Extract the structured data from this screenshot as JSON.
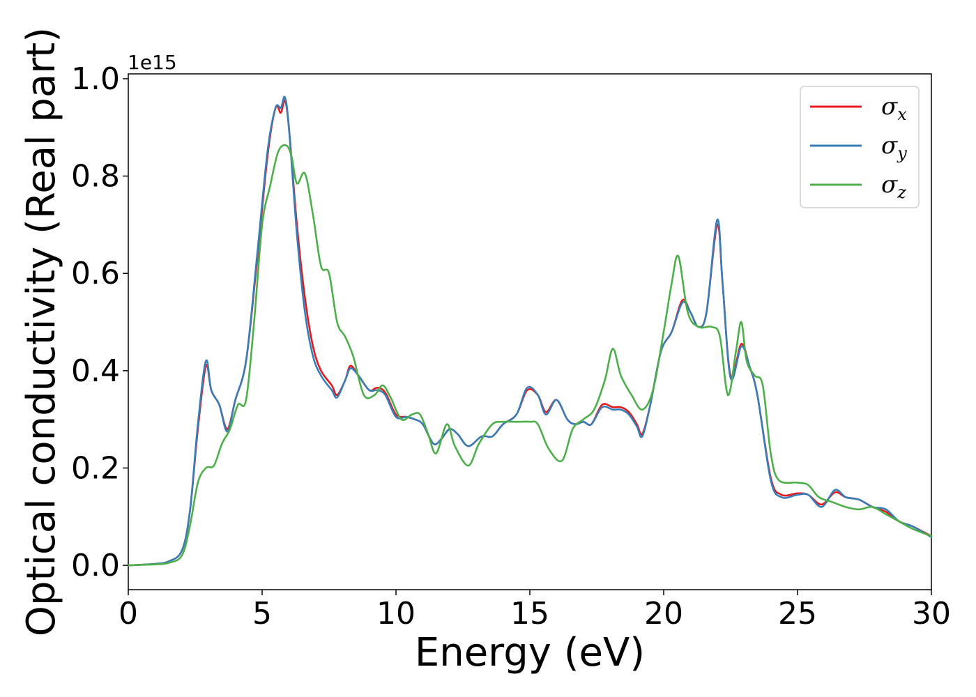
{
  "chart_data": {
    "type": "line",
    "title": "",
    "xlabel": "Energy (eV)",
    "ylabel": "Optical conductivity (Real part)",
    "y_offset_text": "1e15",
    "xlim": [
      0,
      30
    ],
    "ylim": [
      -0.05,
      1.01
    ],
    "xticks": [
      0,
      5,
      10,
      15,
      20,
      25,
      30
    ],
    "xtick_labels": [
      "0",
      "5",
      "10",
      "15",
      "20",
      "25",
      "30"
    ],
    "yticks": [
      0.0,
      0.2,
      0.4,
      0.6,
      0.8,
      1.0
    ],
    "ytick_labels": [
      "0.0",
      "0.2",
      "0.4",
      "0.6",
      "0.8",
      "1.0"
    ],
    "grid": false,
    "legend_position": "top-right",
    "series": [
      {
        "name": "σx",
        "legend_symbol": "σ",
        "legend_subscript": "x",
        "color": "#e41a1c",
        "points": [
          [
            0,
            0
          ],
          [
            1,
            0.003
          ],
          [
            1.5,
            0.008
          ],
          [
            2,
            0.03
          ],
          [
            2.3,
            0.11
          ],
          [
            2.6,
            0.28
          ],
          [
            2.9,
            0.41
          ],
          [
            3.1,
            0.36
          ],
          [
            3.4,
            0.33
          ],
          [
            3.7,
            0.28
          ],
          [
            4,
            0.34
          ],
          [
            4.4,
            0.42
          ],
          [
            4.8,
            0.62
          ],
          [
            5.2,
            0.84
          ],
          [
            5.5,
            0.94
          ],
          [
            5.7,
            0.93
          ],
          [
            5.85,
            0.955
          ],
          [
            6,
            0.9
          ],
          [
            6.3,
            0.7
          ],
          [
            6.6,
            0.55
          ],
          [
            6.9,
            0.45
          ],
          [
            7.2,
            0.4
          ],
          [
            7.6,
            0.37
          ],
          [
            7.8,
            0.35
          ],
          [
            8.1,
            0.38
          ],
          [
            8.3,
            0.41
          ],
          [
            8.6,
            0.39
          ],
          [
            9,
            0.36
          ],
          [
            9.3,
            0.365
          ],
          [
            9.6,
            0.355
          ],
          [
            10,
            0.31
          ],
          [
            10.4,
            0.305
          ],
          [
            10.7,
            0.3
          ],
          [
            11,
            0.29
          ],
          [
            11.4,
            0.25
          ],
          [
            11.7,
            0.26
          ],
          [
            12,
            0.28
          ],
          [
            12.3,
            0.27
          ],
          [
            12.7,
            0.245
          ],
          [
            13.2,
            0.265
          ],
          [
            13.6,
            0.265
          ],
          [
            14,
            0.29
          ],
          [
            14.5,
            0.31
          ],
          [
            14.9,
            0.36
          ],
          [
            15.3,
            0.35
          ],
          [
            15.6,
            0.315
          ],
          [
            16,
            0.34
          ],
          [
            16.4,
            0.3
          ],
          [
            16.7,
            0.29
          ],
          [
            17,
            0.295
          ],
          [
            17.3,
            0.29
          ],
          [
            17.7,
            0.33
          ],
          [
            18.1,
            0.325
          ],
          [
            18.4,
            0.325
          ],
          [
            18.7,
            0.315
          ],
          [
            19,
            0.29
          ],
          [
            19.2,
            0.27
          ],
          [
            19.5,
            0.33
          ],
          [
            19.9,
            0.44
          ],
          [
            20.3,
            0.48
          ],
          [
            20.7,
            0.545
          ],
          [
            21,
            0.52
          ],
          [
            21.3,
            0.49
          ],
          [
            21.6,
            0.52
          ],
          [
            22,
            0.7
          ],
          [
            22.2,
            0.58
          ],
          [
            22.5,
            0.39
          ],
          [
            22.9,
            0.455
          ],
          [
            23.2,
            0.41
          ],
          [
            23.5,
            0.35
          ],
          [
            24,
            0.18
          ],
          [
            24.4,
            0.145
          ],
          [
            25,
            0.148
          ],
          [
            25.4,
            0.145
          ],
          [
            25.9,
            0.125
          ],
          [
            26.4,
            0.15
          ],
          [
            26.8,
            0.14
          ],
          [
            27.3,
            0.135
          ],
          [
            27.8,
            0.12
          ],
          [
            28.3,
            0.11
          ],
          [
            28.8,
            0.09
          ],
          [
            29.3,
            0.08
          ],
          [
            30,
            0.06
          ]
        ]
      },
      {
        "name": "σy",
        "legend_symbol": "σ",
        "legend_subscript": "y",
        "color": "#377eb8",
        "points": [
          [
            0,
            0
          ],
          [
            1,
            0.003
          ],
          [
            1.5,
            0.008
          ],
          [
            2,
            0.03
          ],
          [
            2.3,
            0.11
          ],
          [
            2.6,
            0.29
          ],
          [
            2.9,
            0.42
          ],
          [
            3.1,
            0.36
          ],
          [
            3.4,
            0.33
          ],
          [
            3.7,
            0.275
          ],
          [
            4,
            0.34
          ],
          [
            4.4,
            0.42
          ],
          [
            4.8,
            0.63
          ],
          [
            5.2,
            0.85
          ],
          [
            5.5,
            0.94
          ],
          [
            5.7,
            0.94
          ],
          [
            5.85,
            0.962
          ],
          [
            6,
            0.9
          ],
          [
            6.3,
            0.68
          ],
          [
            6.6,
            0.52
          ],
          [
            6.9,
            0.43
          ],
          [
            7.2,
            0.39
          ],
          [
            7.6,
            0.36
          ],
          [
            7.8,
            0.345
          ],
          [
            8.1,
            0.38
          ],
          [
            8.3,
            0.405
          ],
          [
            8.6,
            0.39
          ],
          [
            9,
            0.36
          ],
          [
            9.3,
            0.36
          ],
          [
            9.6,
            0.35
          ],
          [
            10,
            0.305
          ],
          [
            10.4,
            0.305
          ],
          [
            10.7,
            0.3
          ],
          [
            11,
            0.29
          ],
          [
            11.4,
            0.25
          ],
          [
            11.7,
            0.26
          ],
          [
            12,
            0.28
          ],
          [
            12.3,
            0.27
          ],
          [
            12.7,
            0.245
          ],
          [
            13.2,
            0.265
          ],
          [
            13.6,
            0.265
          ],
          [
            14,
            0.29
          ],
          [
            14.5,
            0.31
          ],
          [
            14.9,
            0.365
          ],
          [
            15.3,
            0.35
          ],
          [
            15.6,
            0.31
          ],
          [
            16,
            0.34
          ],
          [
            16.4,
            0.3
          ],
          [
            16.7,
            0.29
          ],
          [
            17,
            0.295
          ],
          [
            17.3,
            0.29
          ],
          [
            17.7,
            0.325
          ],
          [
            18.1,
            0.32
          ],
          [
            18.4,
            0.32
          ],
          [
            18.7,
            0.31
          ],
          [
            19,
            0.285
          ],
          [
            19.2,
            0.265
          ],
          [
            19.5,
            0.33
          ],
          [
            19.9,
            0.44
          ],
          [
            20.3,
            0.48
          ],
          [
            20.7,
            0.54
          ],
          [
            21,
            0.52
          ],
          [
            21.3,
            0.49
          ],
          [
            21.6,
            0.52
          ],
          [
            22,
            0.71
          ],
          [
            22.2,
            0.58
          ],
          [
            22.5,
            0.385
          ],
          [
            22.9,
            0.45
          ],
          [
            23.2,
            0.41
          ],
          [
            23.5,
            0.35
          ],
          [
            24,
            0.175
          ],
          [
            24.4,
            0.14
          ],
          [
            25,
            0.145
          ],
          [
            25.4,
            0.145
          ],
          [
            25.9,
            0.12
          ],
          [
            26.4,
            0.155
          ],
          [
            26.8,
            0.14
          ],
          [
            27.3,
            0.135
          ],
          [
            27.8,
            0.12
          ],
          [
            28.3,
            0.115
          ],
          [
            28.8,
            0.09
          ],
          [
            29.3,
            0.08
          ],
          [
            30,
            0.058
          ]
        ]
      },
      {
        "name": "σz",
        "legend_symbol": "σ",
        "legend_subscript": "z",
        "color": "#4daf4a",
        "points": [
          [
            0,
            0
          ],
          [
            1,
            0.002
          ],
          [
            1.5,
            0.005
          ],
          [
            2,
            0.02
          ],
          [
            2.3,
            0.08
          ],
          [
            2.6,
            0.17
          ],
          [
            2.9,
            0.2
          ],
          [
            3.2,
            0.205
          ],
          [
            3.5,
            0.25
          ],
          [
            3.8,
            0.28
          ],
          [
            4.1,
            0.33
          ],
          [
            4.4,
            0.34
          ],
          [
            4.7,
            0.5
          ],
          [
            5,
            0.7
          ],
          [
            5.3,
            0.78
          ],
          [
            5.6,
            0.85
          ],
          [
            5.9,
            0.863
          ],
          [
            6.1,
            0.84
          ],
          [
            6.3,
            0.785
          ],
          [
            6.6,
            0.805
          ],
          [
            6.9,
            0.72
          ],
          [
            7.2,
            0.615
          ],
          [
            7.5,
            0.6
          ],
          [
            7.8,
            0.5
          ],
          [
            8.1,
            0.47
          ],
          [
            8.4,
            0.43
          ],
          [
            8.8,
            0.35
          ],
          [
            9.2,
            0.35
          ],
          [
            9.5,
            0.37
          ],
          [
            9.8,
            0.345
          ],
          [
            10.2,
            0.3
          ],
          [
            10.6,
            0.31
          ],
          [
            10.9,
            0.31
          ],
          [
            11.2,
            0.27
          ],
          [
            11.5,
            0.23
          ],
          [
            11.9,
            0.29
          ],
          [
            12.2,
            0.245
          ],
          [
            12.7,
            0.205
          ],
          [
            13.1,
            0.25
          ],
          [
            13.6,
            0.29
          ],
          [
            14,
            0.295
          ],
          [
            14.5,
            0.295
          ],
          [
            15,
            0.295
          ],
          [
            15.3,
            0.29
          ],
          [
            15.7,
            0.24
          ],
          [
            16.2,
            0.215
          ],
          [
            16.6,
            0.28
          ],
          [
            17,
            0.3
          ],
          [
            17.4,
            0.32
          ],
          [
            17.8,
            0.38
          ],
          [
            18.1,
            0.445
          ],
          [
            18.4,
            0.39
          ],
          [
            18.8,
            0.35
          ],
          [
            19.2,
            0.32
          ],
          [
            19.6,
            0.36
          ],
          [
            20,
            0.48
          ],
          [
            20.3,
            0.58
          ],
          [
            20.55,
            0.635
          ],
          [
            20.9,
            0.52
          ],
          [
            21.3,
            0.49
          ],
          [
            21.8,
            0.49
          ],
          [
            22.1,
            0.47
          ],
          [
            22.4,
            0.35
          ],
          [
            22.7,
            0.44
          ],
          [
            22.9,
            0.5
          ],
          [
            23.1,
            0.42
          ],
          [
            23.4,
            0.39
          ],
          [
            23.7,
            0.37
          ],
          [
            24,
            0.23
          ],
          [
            24.3,
            0.175
          ],
          [
            25,
            0.17
          ],
          [
            25.4,
            0.165
          ],
          [
            25.8,
            0.14
          ],
          [
            26.3,
            0.13
          ],
          [
            26.8,
            0.12
          ],
          [
            27.3,
            0.115
          ],
          [
            27.8,
            0.12
          ],
          [
            28.3,
            0.105
          ],
          [
            28.8,
            0.09
          ],
          [
            29.3,
            0.075
          ],
          [
            30,
            0.06
          ]
        ]
      }
    ]
  }
}
